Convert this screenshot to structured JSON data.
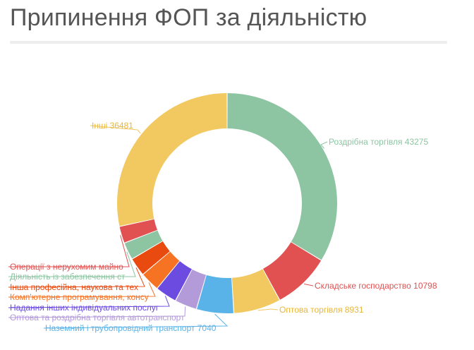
{
  "page": {
    "title": "Припинення ФОП за діяльністю"
  },
  "chart_data": {
    "type": "pie",
    "variant": "donut",
    "title": "Припинення ФОП за діяльністю",
    "slices": [
      {
        "label": "Роздрібна торгівля 43275",
        "value": 43275,
        "color": "#8dc5a2"
      },
      {
        "label": "Складське господарство 10798",
        "value": 10798,
        "color": "#e15151"
      },
      {
        "label": "Оптова торгівля 8931",
        "value": 8931,
        "color": "#f2c861"
      },
      {
        "label": "Наземний і трубопровідний транспорт 7040",
        "value": 7040,
        "color": "#5ab3e8"
      },
      {
        "label": "Оптова та роздрібна торгівля автотранспорт",
        "value": 4200,
        "color": "#b39ad9"
      },
      {
        "label": "Надання інших індивідуальних послуг",
        "value": 4100,
        "color": "#6b4be0"
      },
      {
        "label": "Комп'ютерне програмування, консу",
        "value": 3700,
        "color": "#f77324"
      },
      {
        "label": "Інша професійна, наукова та тех",
        "value": 3500,
        "color": "#e84a10"
      },
      {
        "label": "Діяльність із забезпечення ст",
        "value": 3300,
        "color": "#8dc5a2"
      },
      {
        "label": "Операції з нерухомим майно",
        "value": 3200,
        "color": "#e15151"
      },
      {
        "label": "Інші 36481",
        "value": 36481,
        "color": "#f2c861"
      }
    ]
  }
}
